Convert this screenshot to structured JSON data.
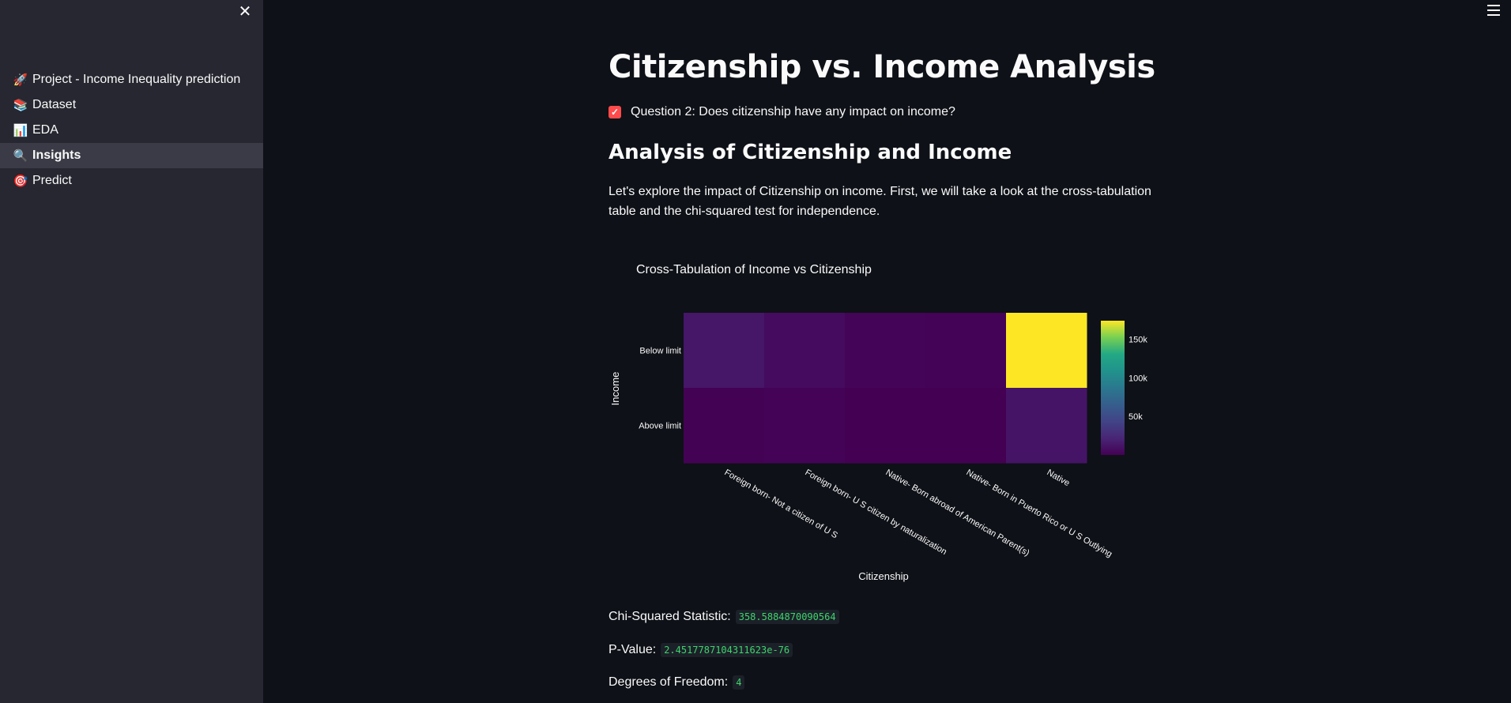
{
  "sidebar": {
    "close_icon": "✕",
    "items": [
      {
        "icon": "🚀",
        "label": "Project - Income Inequality prediction",
        "active": false
      },
      {
        "icon": "📚",
        "label": "Dataset",
        "active": false
      },
      {
        "icon": "📊",
        "label": "EDA",
        "active": false
      },
      {
        "icon": "🔍",
        "label": "Insights",
        "active": true
      },
      {
        "icon": "🎯",
        "label": "Predict",
        "active": false
      }
    ]
  },
  "main": {
    "title": "Citizenship vs. Income Analysis",
    "checkbox_label": "Question 2: Does citizenship have any impact on income?",
    "checkbox_checked": true,
    "section_heading": "Analysis of Citizenship and Income",
    "paragraph": "Let's explore the impact of Citizenship on income. First, we will take a look at the cross-tabulation table and the chi-squared test for independence.",
    "stats": [
      {
        "label": "Chi-Squared Statistic:",
        "value": "358.5884870090564"
      },
      {
        "label": "P-Value:",
        "value": "2.4517787104311623e-76"
      },
      {
        "label": "Degrees of Freedom:",
        "value": "4"
      }
    ]
  },
  "chart_data": {
    "type": "heatmap",
    "title": "Cross-Tabulation of Income vs Citizenship",
    "xlabel": "Citizenship",
    "ylabel": "Income",
    "x": [
      "Foreign born- Not a citizen of U S",
      "Foreign born- U S citizen by naturalization",
      "Native- Born abroad of American Parent(s)",
      "Native- Born in Puerto Rico or U S Outlying",
      "Native"
    ],
    "y": [
      "Below limit",
      "Above limit"
    ],
    "z": [
      [
        12800,
        6300,
        1700,
        1500,
        174000
      ],
      [
        600,
        1200,
        120,
        50,
        11300
      ]
    ],
    "colorscale": "viridis",
    "colorbar_ticks": [
      "50k",
      "100k",
      "150k"
    ],
    "colorbar_tick_values": [
      50000,
      100000,
      150000
    ],
    "zmin": 50,
    "zmax": 174000
  }
}
